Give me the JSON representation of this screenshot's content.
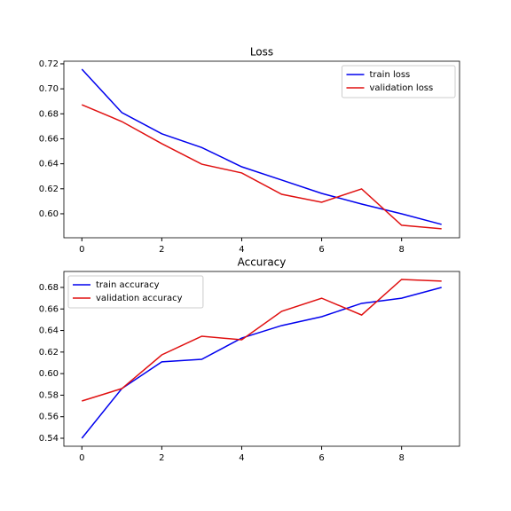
{
  "chart_data": [
    {
      "type": "line",
      "title": "Loss",
      "x": [
        0,
        1,
        2,
        3,
        4,
        5,
        6,
        7,
        8,
        9
      ],
      "series": [
        {
          "name": "train loss",
          "color": "#0000ee",
          "values": [
            0.7157,
            0.681,
            0.664,
            0.653,
            0.6376,
            0.627,
            0.6163,
            0.6078,
            0.6,
            0.5915
          ]
        },
        {
          "name": "validation loss",
          "color": "#e01010",
          "values": [
            0.6873,
            0.6738,
            0.6561,
            0.6397,
            0.6327,
            0.6156,
            0.6092,
            0.6199,
            0.5908,
            0.588
          ]
        }
      ],
      "xlim": [
        -0.45,
        9.45
      ],
      "xticks": [
        0,
        2,
        4,
        6,
        8
      ],
      "ylim": [
        0.5808,
        0.7221
      ],
      "yticks": [
        {
          "value": 0.6,
          "label": "0.60"
        },
        0.62,
        0.64,
        0.66,
        0.68,
        {
          "value": 0.7,
          "label": "0.70"
        },
        0.72
      ],
      "legend": "upper right"
    },
    {
      "type": "line",
      "title": "Accuracy",
      "x": [
        0,
        1,
        2,
        3,
        4,
        5,
        6,
        7,
        8,
        9
      ],
      "series": [
        {
          "name": "train accuracy",
          "color": "#0000ee",
          "values": [
            0.54,
            0.5861,
            0.6109,
            0.6133,
            0.633,
            0.6446,
            0.6528,
            0.6652,
            0.67,
            0.68
          ]
        },
        {
          "name": "validation accuracy",
          "color": "#e01010",
          "values": [
            0.5746,
            0.5861,
            0.6174,
            0.6347,
            0.6314,
            0.6578,
            0.67,
            0.6544,
            0.6874,
            0.6858
          ]
        }
      ],
      "xlim": [
        -0.45,
        9.45
      ],
      "xticks": [
        0,
        2,
        4,
        6,
        8
      ],
      "ylim": [
        0.5326,
        0.6948
      ],
      "yticks": [
        0.54,
        0.56,
        0.58,
        {
          "value": 0.6,
          "label": "0.60"
        },
        0.62,
        0.64,
        0.66,
        0.68
      ],
      "legend": "upper left"
    }
  ]
}
